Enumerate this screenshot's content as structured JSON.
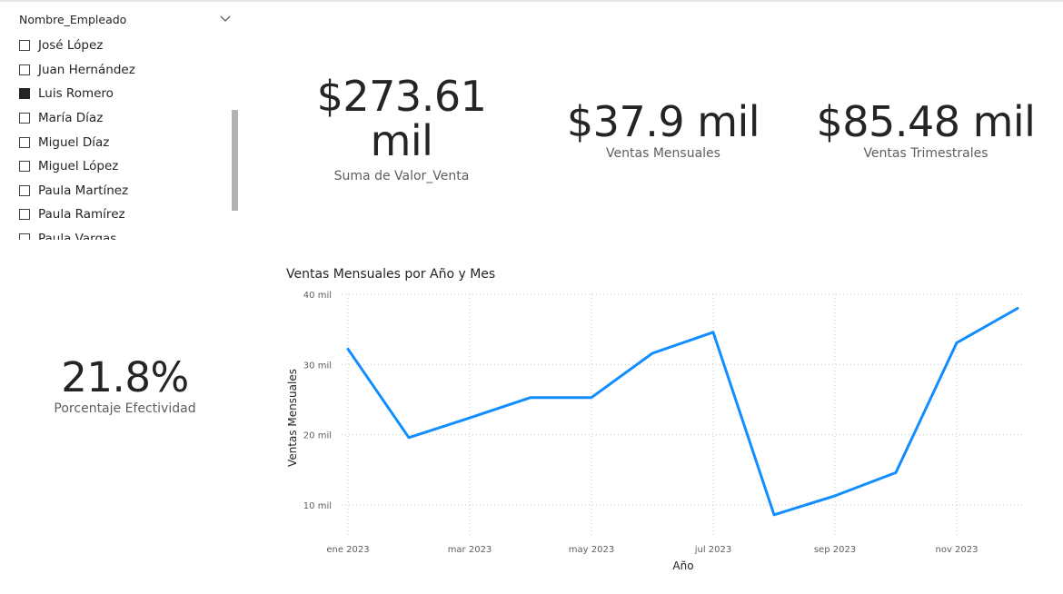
{
  "slicer": {
    "header": "Nombre_Empleado",
    "items": [
      {
        "label": "José López",
        "checked": false
      },
      {
        "label": "Juan Hernández",
        "checked": false
      },
      {
        "label": "Luis Romero",
        "checked": true
      },
      {
        "label": "María Díaz",
        "checked": false
      },
      {
        "label": "Miguel Díaz",
        "checked": false
      },
      {
        "label": "Miguel López",
        "checked": false
      },
      {
        "label": "Paula Martínez",
        "checked": false
      },
      {
        "label": "Paula Ramírez",
        "checked": false
      },
      {
        "label": "Paula Vargas",
        "checked": false
      }
    ]
  },
  "cards": {
    "total_sales": {
      "value_line1": "$273.61",
      "value_line2": "mil",
      "label": "Suma de Valor_Venta"
    },
    "monthly_sales": {
      "value": "$37.9 mil",
      "label": "Ventas Mensuales"
    },
    "quarterly_sales": {
      "value": "$85.48 mil",
      "label": "Ventas Trimestrales"
    },
    "effectiveness": {
      "value": "21.8%",
      "label": "Porcentaje Efectividad"
    }
  },
  "chart": {
    "title": "Ventas Mensuales por Año y Mes"
  },
  "chart_data": {
    "type": "line",
    "title": "Ventas Mensuales por Año y Mes",
    "xlabel": "Año",
    "ylabel": "Ventas Mensuales",
    "x": [
      "ene 2023",
      "feb 2023",
      "mar 2023",
      "abr 2023",
      "may 2023",
      "jun 2023",
      "jul 2023",
      "ago 2023",
      "sep 2023",
      "oct 2023",
      "nov 2023",
      "dic 2023"
    ],
    "x_tick_labels": [
      "ene 2023",
      "mar 2023",
      "may 2023",
      "jul 2023",
      "sep 2023",
      "nov 2023"
    ],
    "y_tick_labels": [
      "10 mil",
      "20 mil",
      "30 mil",
      "40 mil"
    ],
    "y_ticks": [
      10000,
      20000,
      30000,
      40000
    ],
    "ylim": [
      5000,
      40000
    ],
    "series": [
      {
        "values": [
          32200,
          19600,
          22400,
          25300,
          25300,
          31600,
          34600,
          8600,
          11300,
          14600,
          33100,
          38000
        ]
      }
    ],
    "line_color": "#118dff",
    "grid": true
  }
}
